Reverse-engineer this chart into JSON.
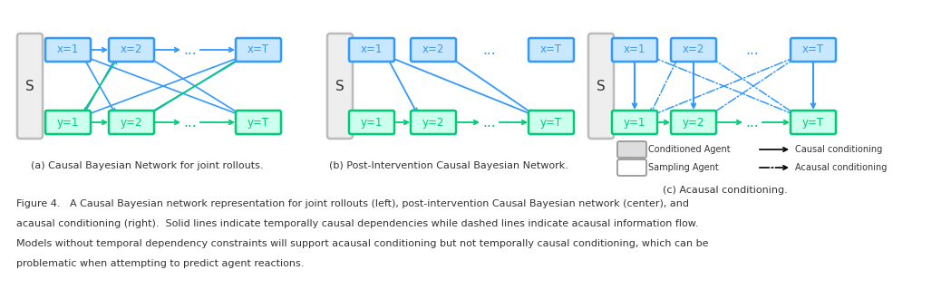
{
  "blue_color": "#3399FF",
  "blue_face": "#C8E8FF",
  "green_color": "#00CC77",
  "green_face": "#CCFFEE",
  "gray_color": "#BBBBBB",
  "gray_face": "#EEEEEE",
  "dark_color": "#333333",
  "bg_color": "#FFFFFF",
  "caption_a": "(a) Causal Bayesian Network for joint rollouts.",
  "caption_b": "(b) Post-Intervention Causal Bayesian Network.",
  "caption_c": "(c) Acausal conditioning.",
  "figure_text_line1": "Figure 4.   A Causal Bayesian network representation for joint rollouts (left), post-intervention Causal Bayesian network (center), and",
  "figure_text_line2": "acausal conditioning (right).  Solid lines indicate temporally causal dependencies while dashed lines indicate acausal information flow.",
  "figure_text_line3": "Models without temporal dependency constraints will support acausal conditioning but not temporally causal conditioning, which can be",
  "figure_text_line4": "problematic when attempting to predict agent reactions.",
  "legend_conditioned": "Conditioned Agent",
  "legend_sampling": "Sampling Agent",
  "legend_causal": "Causal conditioning",
  "legend_acausal": "Acausal conditioning"
}
